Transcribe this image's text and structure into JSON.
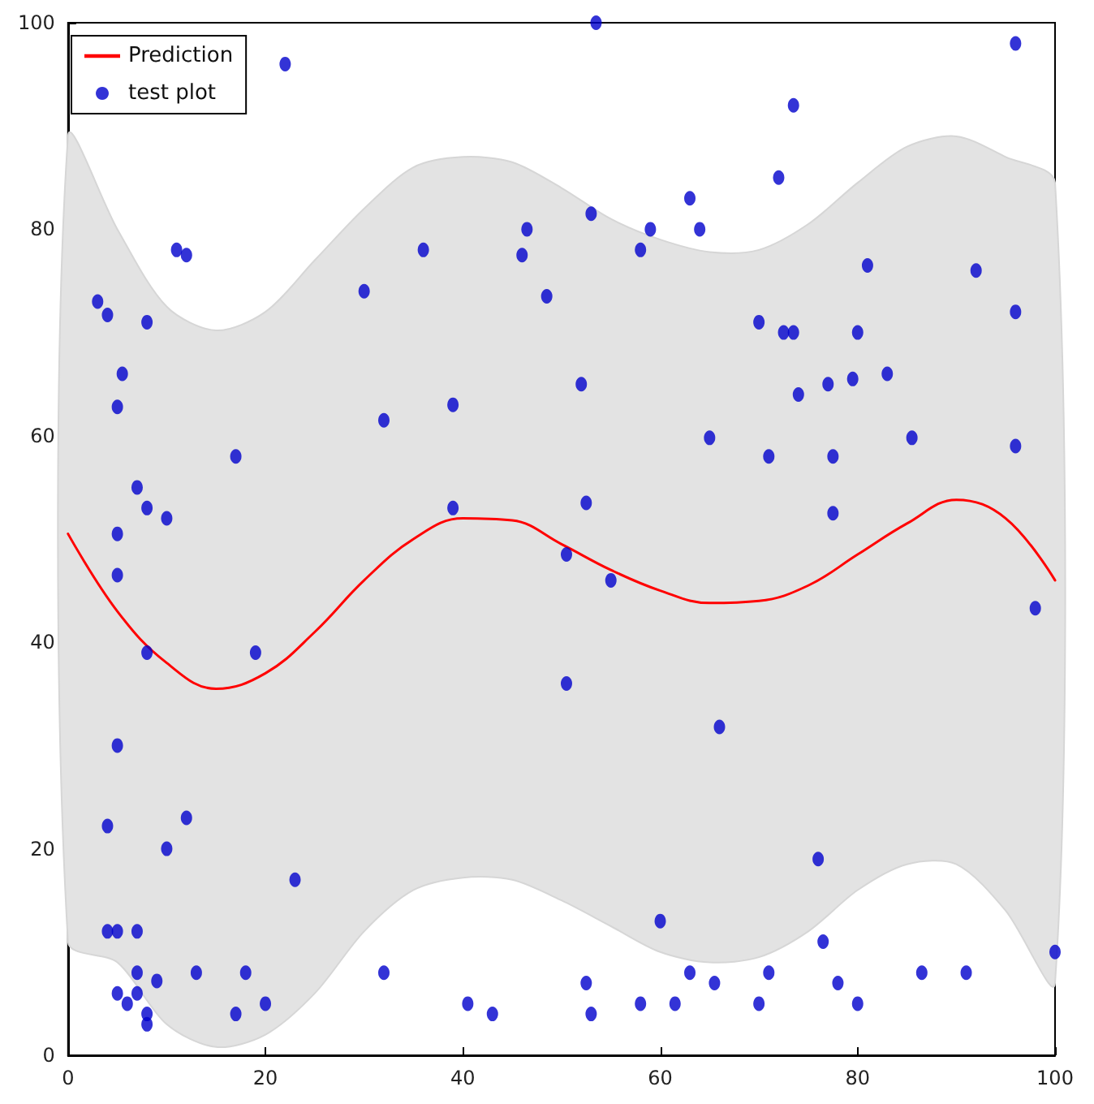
{
  "chart_data": {
    "type": "scatter",
    "xlim": [
      0,
      100
    ],
    "xticks": [
      0,
      20,
      40,
      60,
      80,
      100
    ],
    "ylim": [
      0,
      100
    ],
    "yticks": [
      0,
      20,
      40,
      60,
      80,
      100
    ],
    "grid": false,
    "legend": "top left",
    "series": [
      {
        "name": "Prediction",
        "type": "line",
        "marker": "none",
        "color": "#ff0000",
        "x": [
          0,
          5,
          10,
          15,
          20,
          25,
          30,
          35,
          40,
          45,
          50,
          55,
          60,
          65,
          70,
          75,
          80,
          85,
          90,
          95,
          100
        ],
        "values": [
          50.5,
          43,
          38,
          35.5,
          37,
          41,
          46,
          50,
          52,
          51.8,
          49.5,
          47,
          45,
          43.8,
          44,
          45.5,
          48.5,
          51.5,
          53.8,
          52,
          46
        ],
        "lower": [
          11,
          9,
          3,
          0.8,
          2,
          6,
          12,
          16,
          17.2,
          17,
          15,
          12.5,
          10,
          9,
          9.5,
          12,
          16,
          18.5,
          18.5,
          14,
          7
        ],
        "upper": [
          89,
          80,
          72.5,
          70.2,
          72,
          77,
          82,
          86,
          87,
          86.5,
          84,
          81,
          79,
          77.8,
          78,
          80.5,
          84.5,
          88,
          89,
          87,
          84.5
        ]
      },
      {
        "name": "test plot",
        "marker": "circle",
        "color": "#0000cc",
        "x": [
          3,
          4,
          5,
          5.5,
          7,
          8,
          8,
          5,
          5,
          8,
          10,
          11,
          12,
          17,
          19,
          22,
          30,
          32,
          36,
          39,
          39,
          46,
          46.5,
          48.5,
          52,
          52.5,
          53,
          53.5,
          50.5,
          55,
          50.5,
          58,
          59,
          63,
          64,
          65,
          66,
          70,
          71,
          72,
          72.5,
          73.5,
          74,
          73.5,
          77,
          77.5,
          77.5,
          79.5,
          80,
          81,
          83,
          85.5,
          92,
          96,
          96,
          96,
          98,
          5,
          4,
          10,
          12,
          23,
          4,
          5,
          7,
          7,
          9,
          5,
          6,
          7,
          8,
          8,
          13,
          18,
          17,
          20,
          32,
          40.5,
          43,
          52.5,
          53,
          58,
          60,
          61.5,
          63,
          65.5,
          70,
          71,
          76,
          76.5,
          78,
          80,
          86.5,
          91,
          100
        ],
        "values": [
          73,
          71.7,
          62.8,
          66,
          55,
          53,
          71,
          50.5,
          46.5,
          39,
          52,
          78,
          77.5,
          58,
          39,
          96,
          74,
          61.5,
          78,
          63,
          53,
          77.5,
          80,
          73.5,
          65,
          53.5,
          81.5,
          100,
          48.5,
          46,
          36,
          78,
          80,
          83,
          80,
          59.8,
          31.8,
          71,
          58,
          85,
          70,
          70,
          64,
          92,
          65,
          52.5,
          58,
          65.5,
          70,
          76.5,
          66,
          59.8,
          76,
          98,
          72,
          59,
          43.3,
          30,
          22.2,
          20,
          23,
          17,
          12,
          12,
          12,
          8,
          7.2,
          6,
          5,
          6,
          4,
          3,
          8,
          8,
          4,
          5,
          8,
          5,
          4,
          7,
          4,
          5,
          13,
          5,
          8,
          7,
          5,
          8,
          19,
          11,
          7,
          5,
          8,
          8,
          10
        ]
      }
    ]
  }
}
